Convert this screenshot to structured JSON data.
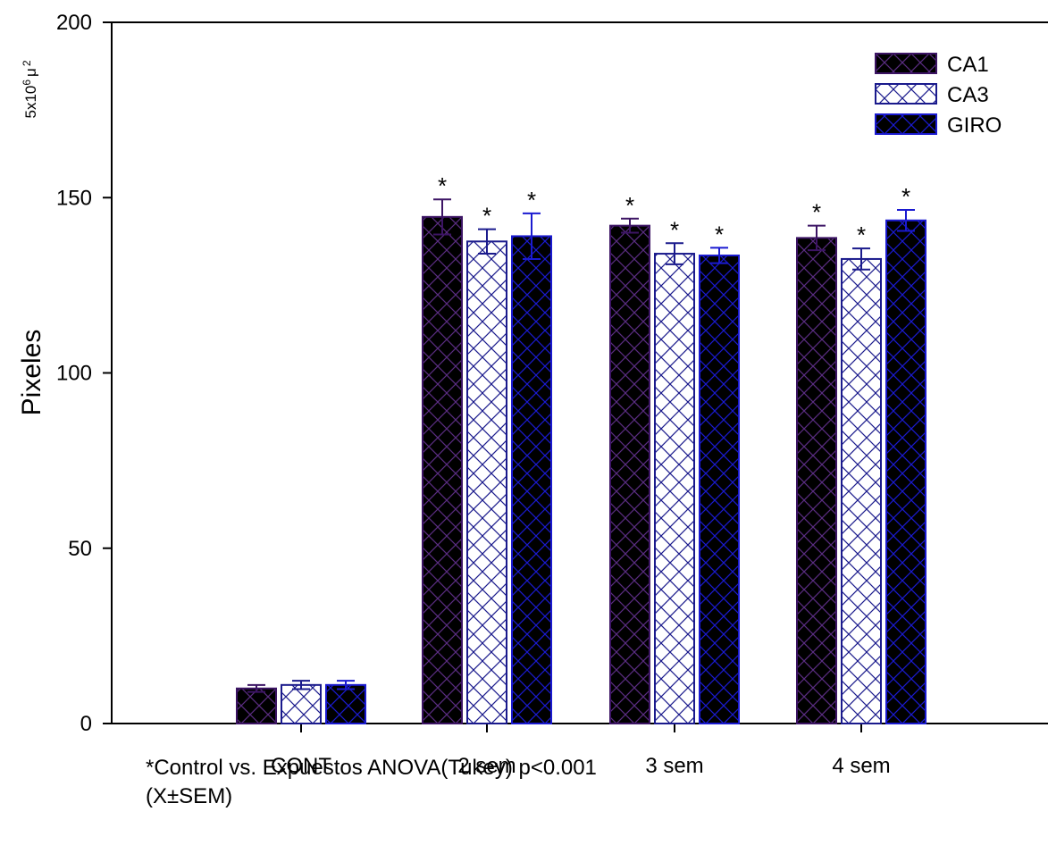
{
  "chart_data": {
    "type": "bar",
    "title": "",
    "xlabel": "",
    "ylabel": "Pixeles",
    "yunit": {
      "base": "5x10",
      "exp1": "6",
      "mid": "μ",
      "exp2": "2"
    },
    "ylim": [
      0,
      200
    ],
    "yticks": [
      "0",
      "50",
      "100",
      "150",
      "200"
    ],
    "categories": [
      "CONT",
      "2 sem",
      "3 sem",
      "4 sem"
    ],
    "series": [
      {
        "name": "CA1",
        "values": [
          10,
          144.5,
          142,
          138.5
        ],
        "errors": [
          1,
          5,
          2,
          3.5
        ],
        "fill": "#000000",
        "hatch": "#5a2d82",
        "edge": "#3c1464",
        "err_color": "#3c1464"
      },
      {
        "name": "CA3",
        "values": [
          11,
          137.5,
          134,
          132.5
        ],
        "errors": [
          1.2,
          3.5,
          3,
          3
        ],
        "fill": "#ffffff",
        "hatch": "#1a1a8c",
        "edge": "#1a1a8c",
        "err_color": "#1a1a8c"
      },
      {
        "name": "GIRO",
        "values": [
          11,
          139,
          133.5,
          143.5
        ],
        "errors": [
          1.2,
          6.5,
          2.2,
          3
        ],
        "fill": "#000000",
        "hatch": "#1a1ad0",
        "edge": "#1a1ad0",
        "err_color": "#1a1ad0"
      }
    ],
    "significance_marker": "*",
    "significant_categories": [
      "2 sem",
      "3 sem",
      "4 sem"
    ],
    "legend": {
      "position": "top-right"
    },
    "grid": false
  },
  "notes": {
    "line1": "*Control vs. Expuestos ANOVA(Tukey) p<0.001",
    "line2": "(X±SEM)"
  }
}
